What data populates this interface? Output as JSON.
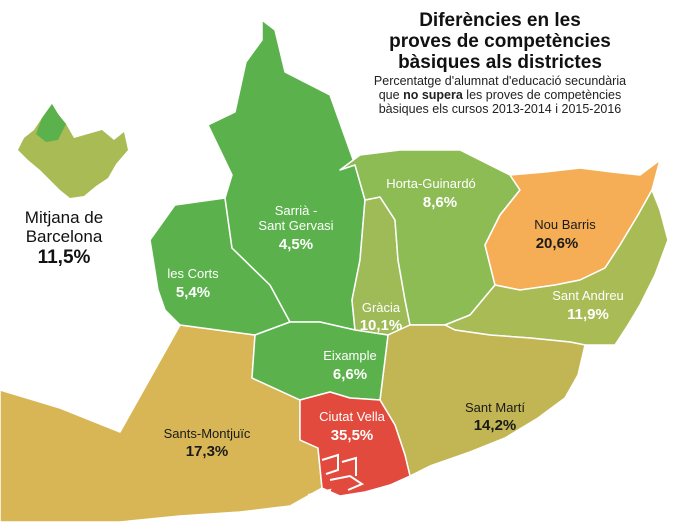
{
  "title": {
    "line1": "Diferències en les",
    "line2": "proves de competències",
    "line3": "bàsiques als districtes"
  },
  "subtitle": {
    "line1": "Percentatge d'alumnat d'educació secundària",
    "line2_prefix": "que ",
    "line2_bold": "no supera",
    "line2_suffix": " les proves de competències",
    "line3": "bàsiques els cursos 2013-2014 i 2015-2016"
  },
  "average": {
    "label_line1": "Mitjana de",
    "label_line2": "Barcelona",
    "value": "11,5%"
  },
  "districts": [
    {
      "id": "sarria",
      "name_line1": "Sarrià -",
      "name_line2": "Sant Gervasi",
      "value": "4,5%",
      "percent": 4.5,
      "color": "#5bb14c"
    },
    {
      "id": "les-corts",
      "name_line1": "les Corts",
      "value": "5,4%",
      "percent": 5.4,
      "color": "#5bb14c"
    },
    {
      "id": "eixample",
      "name_line1": "Eixample",
      "value": "6,6%",
      "percent": 6.6,
      "color": "#5bb14c"
    },
    {
      "id": "horta",
      "name_line1": "Horta-Guinardó",
      "value": "8,6%",
      "percent": 8.6,
      "color": "#8dbc55"
    },
    {
      "id": "gracia",
      "name_line1": "Gràcia",
      "value": "10,1%",
      "percent": 10.1,
      "color": "#9fbb58"
    },
    {
      "id": "sant-andreu",
      "name_line1": "Sant Andreu",
      "value": "11,9%",
      "percent": 11.9,
      "color": "#a9bb55"
    },
    {
      "id": "sant-marti",
      "name_line1": "Sant Martí",
      "value": "14,2%",
      "percent": 14.2,
      "color": "#c2b553"
    },
    {
      "id": "sants",
      "name_line1": "Sants-Montjuïc",
      "value": "17,3%",
      "percent": 17.3,
      "color": "#d8b655"
    },
    {
      "id": "nou-barris",
      "name_line1": "Nou Barris",
      "value": "20,6%",
      "percent": 20.6,
      "color": "#f5ae55"
    },
    {
      "id": "ciutat-vella",
      "name_line1": "Ciutat Vella",
      "value": "35,5%",
      "percent": 35.5,
      "color": "#e14a3c"
    }
  ]
}
